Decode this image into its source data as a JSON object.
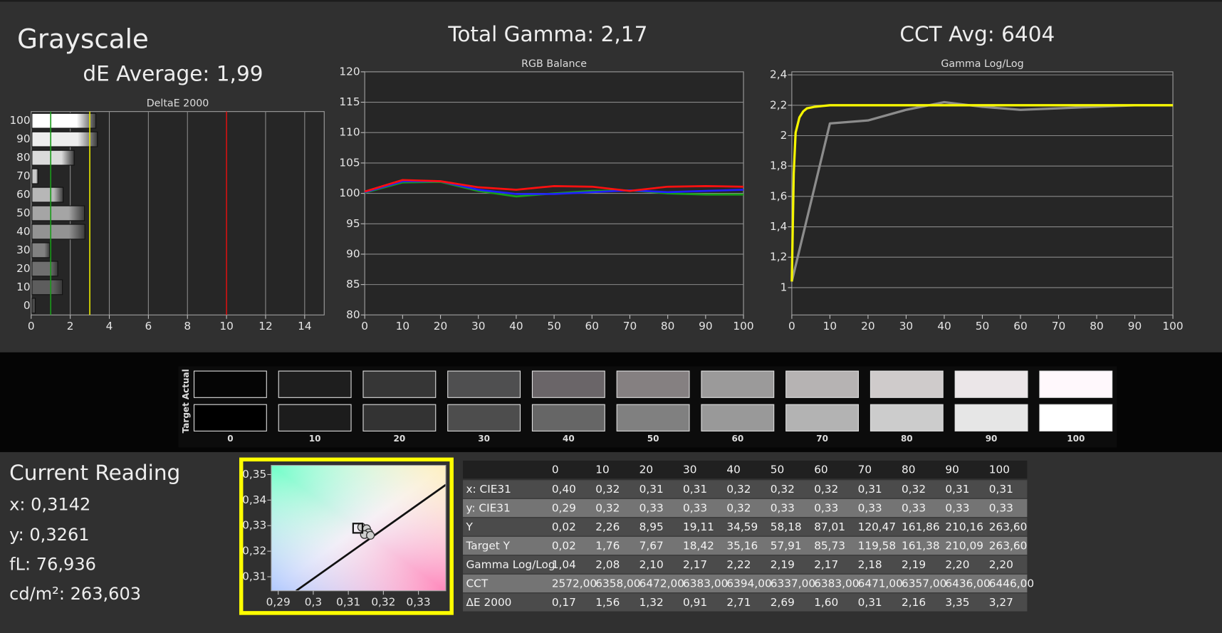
{
  "header": {
    "title": "Grayscale",
    "de_average": "dE Average: 1,99",
    "total_gamma": "Total Gamma: 2,17",
    "cct_avg": "CCT Avg: 6404"
  },
  "chart_data": [
    {
      "type": "hbar",
      "title": "DeltaE 2000",
      "categories": [
        "100",
        "90",
        "80",
        "70",
        "60",
        "50",
        "40",
        "30",
        "20",
        "10",
        "0"
      ],
      "values": [
        3.27,
        3.35,
        2.16,
        0.31,
        1.6,
        2.69,
        2.71,
        0.91,
        1.32,
        1.56,
        0.17
      ],
      "xlim": [
        0,
        15
      ],
      "xticks": [
        0,
        2,
        4,
        6,
        8,
        10,
        12,
        14
      ],
      "grid": true,
      "reference_lines": [
        {
          "value": 1,
          "color": "#1a9a1a"
        },
        {
          "value": 3,
          "color": "#e8e800"
        },
        {
          "value": 10,
          "color": "#d01010"
        }
      ]
    },
    {
      "type": "line",
      "title": "RGB Balance",
      "x": [
        0,
        10,
        20,
        30,
        40,
        50,
        60,
        70,
        80,
        90,
        100
      ],
      "xlim": [
        0,
        100
      ],
      "xticks": [
        0,
        10,
        20,
        30,
        40,
        50,
        60,
        70,
        80,
        90,
        100
      ],
      "ylim": [
        80,
        120
      ],
      "yticks": [
        80,
        85,
        90,
        95,
        100,
        105,
        110,
        115,
        120
      ],
      "grid": true,
      "series": [
        {
          "color": "#18a018",
          "values": [
            100.1,
            101.8,
            101.9,
            100.4,
            99.5,
            100.0,
            100.4,
            100.5,
            100.0,
            99.8,
            99.8
          ]
        },
        {
          "color": "#2020ff",
          "values": [
            100.2,
            102.0,
            102.0,
            100.6,
            99.9,
            99.9,
            100.2,
            100.5,
            100.2,
            100.4,
            100.6
          ]
        },
        {
          "color": "#ff1010",
          "values": [
            100.3,
            102.2,
            102.0,
            101.0,
            100.6,
            101.2,
            101.1,
            100.4,
            101.1,
            101.2,
            101.1
          ]
        }
      ]
    },
    {
      "type": "line",
      "title": "Gamma Log/Log",
      "x": [
        0,
        10,
        20,
        30,
        40,
        50,
        60,
        70,
        80,
        90,
        100
      ],
      "xlim": [
        0,
        100
      ],
      "xticks": [
        0,
        10,
        20,
        30,
        40,
        50,
        60,
        70,
        80,
        90,
        100
      ],
      "ylim": [
        0.82,
        2.42
      ],
      "yticks": [
        1,
        {
          "value": 1.2,
          "label": "1,2"
        },
        {
          "value": 1.4,
          "label": "1,4"
        },
        {
          "value": 1.6,
          "label": "1,6"
        },
        {
          "value": 1.8,
          "label": "1,8"
        },
        2,
        {
          "value": 2.2,
          "label": "2,2"
        },
        {
          "value": 2.4,
          "label": "2,4"
        }
      ],
      "grid": true,
      "series": [
        {
          "color": "#8c8c8c",
          "width": 3,
          "values": [
            1.04,
            2.08,
            2.1,
            2.17,
            2.22,
            2.19,
            2.17,
            2.18,
            2.19,
            2.2,
            2.2
          ]
        },
        {
          "color": "#f5f500",
          "width": 3,
          "x": [
            0,
            0.5,
            1,
            2,
            3,
            4,
            6,
            8,
            10,
            20,
            30,
            40,
            50,
            60,
            70,
            80,
            90,
            100
          ],
          "values": [
            1.04,
            1.75,
            2.02,
            2.12,
            2.16,
            2.18,
            2.19,
            2.195,
            2.2,
            2.2,
            2.2,
            2.2,
            2.2,
            2.2,
            2.2,
            2.2,
            2.2,
            2.2
          ]
        }
      ]
    },
    {
      "type": "scatter",
      "xlim": [
        0.288,
        0.3378
      ],
      "xticks": [
        {
          "value": 0.29,
          "label": "0,29"
        },
        {
          "value": 0.3,
          "label": "0,3"
        },
        {
          "value": 0.31,
          "label": "0,31"
        },
        {
          "value": 0.32,
          "label": "0,32"
        },
        {
          "value": 0.33,
          "label": "0,33"
        }
      ],
      "ylim": [
        0.3045,
        0.3536
      ],
      "yticks": [
        {
          "value": 0.31,
          "label": "0,31"
        },
        {
          "value": 0.32,
          "label": "0,32"
        },
        {
          "value": 0.33,
          "label": "0,33"
        },
        {
          "value": 0.34,
          "label": "0,34"
        },
        {
          "value": 0.35,
          "label": "0,35"
        }
      ],
      "series": [
        {
          "marker": "circle",
          "color": "#cfcfcf",
          "x": [
            0.3138,
            0.3152,
            0.3158,
            0.3146,
            0.3163
          ],
          "values": [
            0.3294,
            0.3288,
            0.3272,
            0.3265,
            0.3262
          ]
        },
        {
          "marker": "square",
          "color": "#111111",
          "x": [
            0.3127
          ],
          "values": [
            0.329
          ]
        }
      ]
    }
  ],
  "swatches": {
    "row_labels": [
      "Actual",
      "Target"
    ],
    "labels": [
      "0",
      "10",
      "20",
      "30",
      "40",
      "50",
      "60",
      "70",
      "80",
      "90",
      "100"
    ],
    "actual_colors": [
      "#050505",
      "#1e1e1e",
      "#363636",
      "#4f4f50",
      "#6a6568",
      "#858081",
      "#9b9a9a",
      "#b6b3b3",
      "#cfcbcb",
      "#ebe6e8",
      "#fff8fc"
    ],
    "target_colors": [
      "#000000",
      "#1c1c1c",
      "#333333",
      "#4d4d4d",
      "#666666",
      "#808080",
      "#999999",
      "#b3b3b3",
      "#cccccc",
      "#e6e6e6",
      "#ffffff"
    ]
  },
  "reading": {
    "title": "Current Reading",
    "x": "x: 0,3142",
    "y": "y: 0,3261",
    "fl": "fL: 76,936",
    "cdm2": "cd/m²: 263,603"
  },
  "table": {
    "columns": [
      "0",
      "10",
      "20",
      "30",
      "40",
      "50",
      "60",
      "70",
      "80",
      "90",
      "100"
    ],
    "rows": [
      {
        "label": "x: CIE31",
        "cells": [
          "0,40",
          "0,32",
          "0,31",
          "0,31",
          "0,32",
          "0,32",
          "0,32",
          "0,31",
          "0,32",
          "0,31",
          "0,31"
        ]
      },
      {
        "label": "y: CIE31",
        "cells": [
          "0,29",
          "0,32",
          "0,33",
          "0,33",
          "0,32",
          "0,33",
          "0,33",
          "0,33",
          "0,33",
          "0,33",
          "0,33"
        ]
      },
      {
        "label": "Y",
        "cells": [
          "0,02",
          "2,26",
          "8,95",
          "19,11",
          "34,59",
          "58,18",
          "87,01",
          "120,47",
          "161,86",
          "210,16",
          "263,60"
        ]
      },
      {
        "label": "Target Y",
        "cells": [
          "0,02",
          "1,76",
          "7,67",
          "18,42",
          "35,16",
          "57,91",
          "85,73",
          "119,58",
          "161,38",
          "210,09",
          "263,60"
        ]
      },
      {
        "label": "Gamma Log/Log",
        "cells": [
          "1,04",
          "2,08",
          "2,10",
          "2,17",
          "2,22",
          "2,19",
          "2,17",
          "2,18",
          "2,19",
          "2,20",
          "2,20"
        ]
      },
      {
        "label": "CCT",
        "cells": [
          "2572,00",
          "6358,00",
          "6472,00",
          "6383,00",
          "6394,00",
          "6337,00",
          "6383,00",
          "6471,00",
          "6357,00",
          "6436,00",
          "6446,00"
        ]
      },
      {
        "label": "ΔE 2000",
        "cells": [
          "0,17",
          "1,56",
          "1,32",
          "0,91",
          "2,71",
          "2,69",
          "1,60",
          "0,31",
          "2,16",
          "3,35",
          "3,27"
        ]
      }
    ]
  }
}
